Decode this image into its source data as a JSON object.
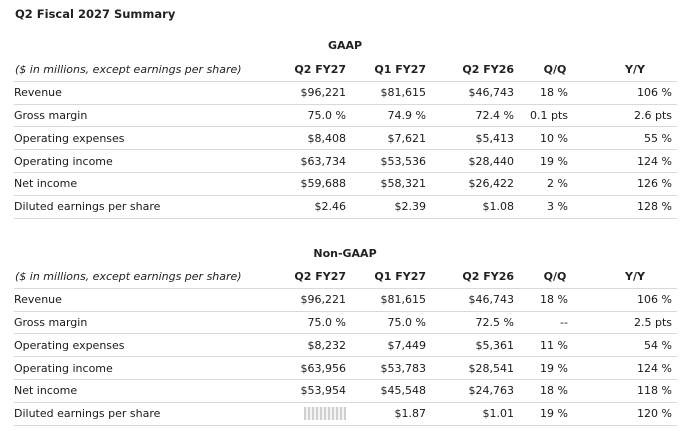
{
  "title": "Q2 Fiscal 2027 Summary",
  "header_label": "($ in millions, except earnings per share)",
  "columns": [
    "Q2 FY27",
    "Q1 FY27",
    "Q2 FY26",
    "Q/Q",
    "Y/Y"
  ],
  "gaap": {
    "section_title": "GAAP",
    "rows": [
      {
        "label": "Revenue",
        "q2fy27": "$96,221",
        "q1fy27": "$81,615",
        "q2fy26": "$46,743",
        "qq": "18 %",
        "yy": "106 %"
      },
      {
        "label": "Gross margin",
        "q2fy27": "75.0 %",
        "q1fy27": "74.9 %",
        "q2fy26": "72.4 %",
        "qq": "0.1 pts",
        "yy": "2.6 pts"
      },
      {
        "label": "Operating expenses",
        "q2fy27": "$8,408",
        "q1fy27": "$7,621",
        "q2fy26": "$5,413",
        "qq": "10 %",
        "yy": "55 %"
      },
      {
        "label": "Operating income",
        "q2fy27": "$63,734",
        "q1fy27": "$53,536",
        "q2fy26": "$28,440",
        "qq": "19 %",
        "yy": "124 %"
      },
      {
        "label": "Net income",
        "q2fy27": "$59,688",
        "q1fy27": "$58,321",
        "q2fy26": "$26,422",
        "qq": "2 %",
        "yy": "126 %"
      },
      {
        "label": "Diluted earnings per share",
        "q2fy27": "$2.46",
        "q1fy27": "$2.39",
        "q2fy26": "$1.08",
        "qq": "3 %",
        "yy": "128 %"
      }
    ]
  },
  "non_gaap": {
    "section_title": "Non-GAAP",
    "rows": [
      {
        "label": "Revenue",
        "q2fy27": "$96,221",
        "q1fy27": "$81,615",
        "q2fy26": "$46,743",
        "qq": "18 %",
        "yy": "106 %"
      },
      {
        "label": "Gross margin",
        "q2fy27": "75.0 %",
        "q1fy27": "75.0 %",
        "q2fy26": "72.5 %",
        "qq": "--",
        "yy": "2.5 pts"
      },
      {
        "label": "Operating expenses",
        "q2fy27": "$8,232",
        "q1fy27": "$7,449",
        "q2fy26": "$5,361",
        "qq": "11 %",
        "yy": "54 %"
      },
      {
        "label": "Operating income",
        "q2fy27": "$63,956",
        "q1fy27": "$53,783",
        "q2fy26": "$28,541",
        "qq": "19 %",
        "yy": "124 %"
      },
      {
        "label": "Net income",
        "q2fy27": "$53,954",
        "q1fy27": "$45,548",
        "q2fy26": "$24,763",
        "qq": "18 %",
        "yy": "118 %"
      },
      {
        "label": "Diluted earnings per share",
        "q2fy27": "",
        "q1fy27": "$1.87",
        "q2fy26": "$1.01",
        "qq": "19 %",
        "yy": "120 %"
      }
    ]
  }
}
